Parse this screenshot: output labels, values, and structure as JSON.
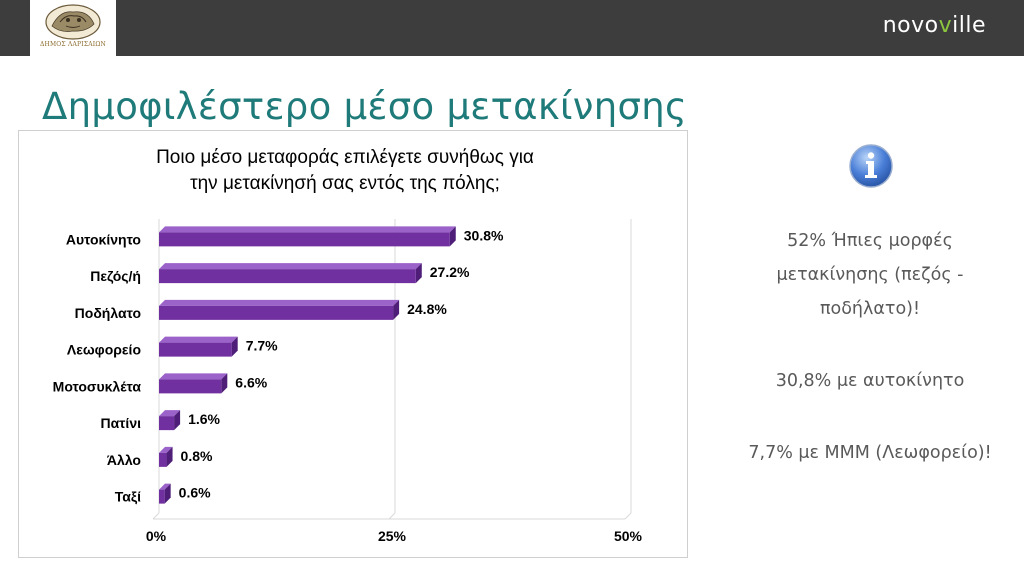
{
  "header": {
    "municipality_caption": "ΔΗΜΟΣ ΛΑΡΙΣΑΙΩΝ",
    "brand_left": "novo",
    "brand_accent": "v",
    "brand_right": "ille"
  },
  "page": {
    "title": "Δημοφιλέστερο μέσο μετακίνησης"
  },
  "chart_data": {
    "type": "bar",
    "orientation": "horizontal",
    "title_lines": [
      "Ποιο μέσο μεταφοράς επιλέγετε συνήθως για",
      "την μετακίνησή σας εντός της πόλης;"
    ],
    "categories": [
      "Αυτοκίνητο",
      "Πεζός/ή",
      "Ποδήλατο",
      "Λεωφορείο",
      "Μοτοσυκλέτα",
      "Πατίνι",
      "Άλλο",
      "Ταξί"
    ],
    "values": [
      30.8,
      27.2,
      24.8,
      7.7,
      6.6,
      1.6,
      0.8,
      0.6
    ],
    "value_labels": [
      "30.8%",
      "27.2%",
      "24.8%",
      "7.7%",
      "6.6%",
      "1.6%",
      "0.8%",
      "0.6%"
    ],
    "x_ticks": [
      0,
      25,
      50
    ],
    "x_tick_labels": [
      "0%",
      "25%",
      "50%"
    ],
    "xlim": [
      0,
      50
    ],
    "grid": true,
    "bar_color": "#7030a0"
  },
  "info": {
    "icon": "info-icon",
    "lines": [
      "52% Ήπιες μορφές",
      "μετακίνησης (πεζός -",
      "ποδήλατο)!",
      "30,8% με αυτοκίνητο",
      "7,7% με ΜΜΜ (Λεωφορείο)!"
    ]
  }
}
